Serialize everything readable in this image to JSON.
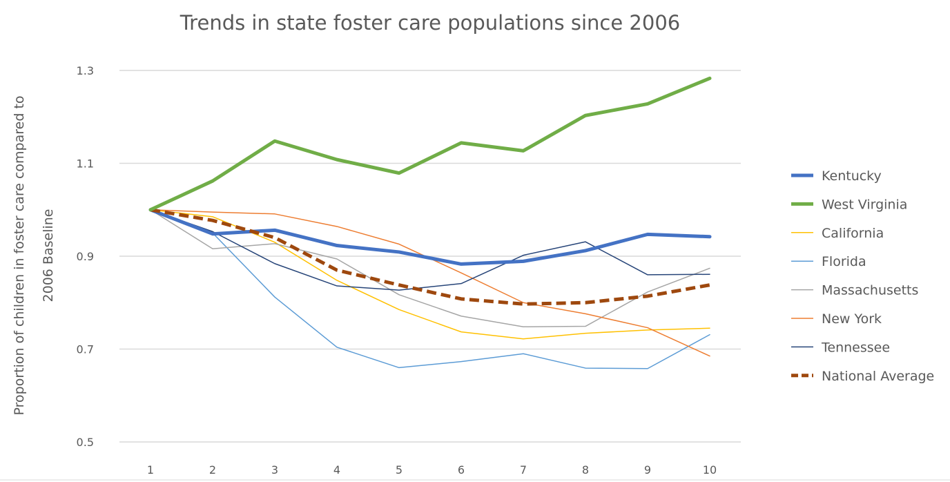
{
  "chart_data": {
    "type": "line",
    "title": "Trends in state foster care populations since 2006",
    "ylabel_lines": [
      "Proportion of children in foster care compared to",
      "2006 Baseline"
    ],
    "xlabel": "",
    "x": [
      1,
      2,
      3,
      4,
      5,
      6,
      7,
      8,
      9,
      10
    ],
    "x_ticks": [
      "1",
      "2",
      "3",
      "4",
      "5",
      "6",
      "7",
      "8",
      "9",
      "10"
    ],
    "ylim": [
      0.5,
      1.3
    ],
    "y_ticks": [
      {
        "value": 0.5,
        "label": "0.5"
      },
      {
        "value": 0.7,
        "label": "0.7"
      },
      {
        "value": 0.9,
        "label": "0.9"
      },
      {
        "value": 1.1,
        "label": "1.1"
      },
      {
        "value": 1.3,
        "label": "1.3"
      }
    ],
    "grid": true,
    "legend_position": "right",
    "series": [
      {
        "name": "Kentucky",
        "color": "#4472c4",
        "width": 5,
        "dash": "",
        "values": [
          1.0,
          0.948,
          0.956,
          0.923,
          0.909,
          0.883,
          0.889,
          0.912,
          0.947,
          0.942
        ]
      },
      {
        "name": "West Virginia",
        "color": "#70ad47",
        "width": 5,
        "dash": "",
        "values": [
          1.0,
          1.062,
          1.148,
          1.108,
          1.079,
          1.144,
          1.127,
          1.203,
          1.228,
          1.283
        ]
      },
      {
        "name": "California",
        "color": "#ffc000",
        "width": 1.5,
        "dash": "",
        "values": [
          1.0,
          0.985,
          0.93,
          0.848,
          0.785,
          0.737,
          0.722,
          0.734,
          0.741,
          0.745
        ]
      },
      {
        "name": "Florida",
        "color": "#5b9bd5",
        "width": 1.5,
        "dash": "",
        "values": [
          1.0,
          0.95,
          0.812,
          0.704,
          0.66,
          0.673,
          0.69,
          0.659,
          0.658,
          0.731
        ]
      },
      {
        "name": "Massachusetts",
        "color": "#a5a5a5",
        "width": 1.5,
        "dash": "",
        "values": [
          1.0,
          0.916,
          0.927,
          0.894,
          0.817,
          0.771,
          0.748,
          0.749,
          0.823,
          0.874
        ]
      },
      {
        "name": "New York",
        "color": "#ed7d31",
        "width": 1.5,
        "dash": "",
        "values": [
          1.0,
          0.995,
          0.991,
          0.964,
          0.926,
          0.864,
          0.8,
          0.776,
          0.746,
          0.685
        ]
      },
      {
        "name": "Tennessee",
        "color": "#264478",
        "width": 1.5,
        "dash": "",
        "values": [
          1.0,
          0.953,
          0.884,
          0.836,
          0.827,
          0.841,
          0.902,
          0.931,
          0.86,
          0.861
        ]
      },
      {
        "name": "National Average",
        "color": "#9e480e",
        "width": 5,
        "dash": "14 7",
        "values": [
          1.0,
          0.977,
          0.94,
          0.87,
          0.838,
          0.808,
          0.797,
          0.8,
          0.814,
          0.838
        ]
      }
    ]
  }
}
